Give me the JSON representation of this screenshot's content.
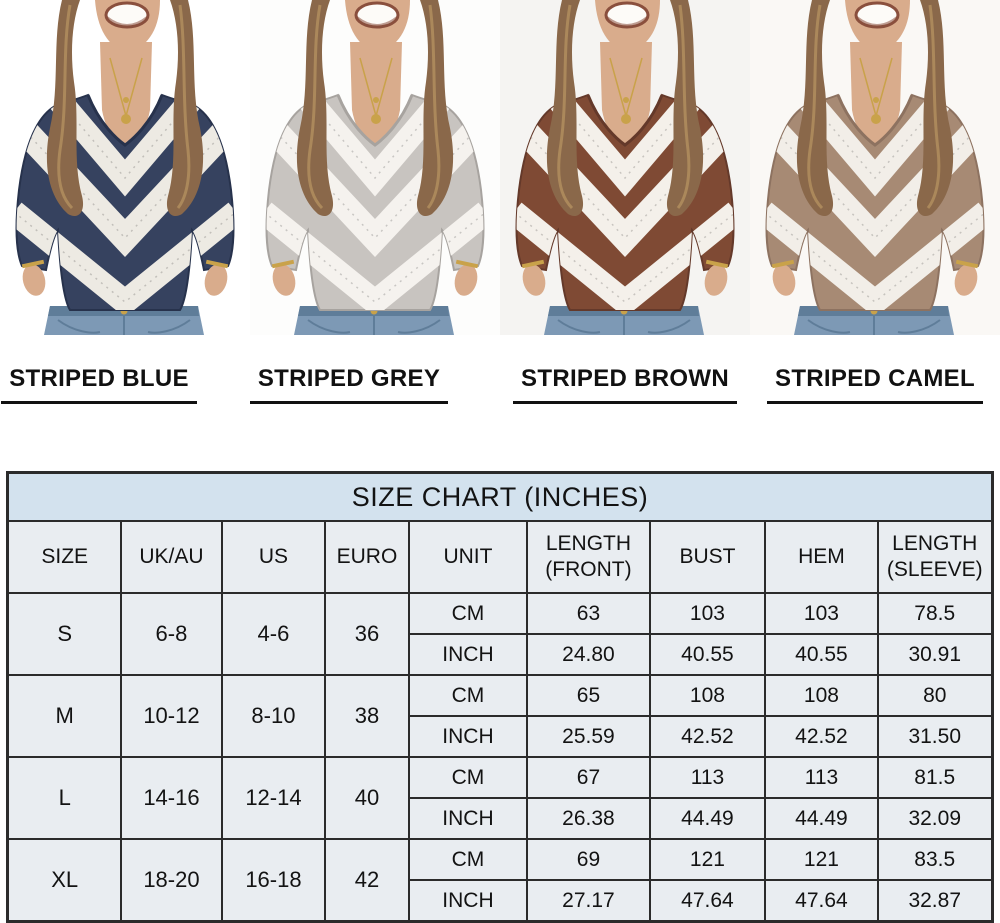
{
  "products": {
    "photos": [
      {
        "id": "blue",
        "label": "STRIPED BLUE",
        "main": "#36425f",
        "shade": "#27324c",
        "stripe": "#edeae3",
        "bg": "#ffffff"
      },
      {
        "id": "grey",
        "label": "STRIPED GREY",
        "main": "#c8c4c0",
        "shade": "#a7a39f",
        "stripe": "#f5f2ee",
        "bg": "#fdfdfc"
      },
      {
        "id": "brown",
        "label": "STRIPED BROWN",
        "main": "#7f4a34",
        "shade": "#64392a",
        "stripe": "#f4f0ea",
        "bg": "#f5f4f2"
      },
      {
        "id": "camel",
        "label": "STRIPED CAMEL",
        "main": "#a78a74",
        "shade": "#8d7260",
        "stripe": "#f2eee8",
        "bg": "#faf8f5"
      }
    ]
  },
  "size_chart": {
    "title": "SIZE CHART (INCHES)",
    "columns": [
      "SIZE",
      "UK/AU",
      "US",
      "EURO",
      "UNIT",
      "LENGTH (FRONT)",
      "BUST",
      "HEM",
      "LENGTH (SLEEVE)"
    ],
    "unit_labels": {
      "cm": "CM",
      "inch": "INCH"
    },
    "rows": [
      {
        "size": "S",
        "uk_au": "6-8",
        "us": "4-6",
        "euro": "36",
        "cm": [
          "63",
          "103",
          "103",
          "78.5"
        ],
        "inch": [
          "24.80",
          "40.55",
          "40.55",
          "30.91"
        ]
      },
      {
        "size": "M",
        "uk_au": "10-12",
        "us": "8-10",
        "euro": "38",
        "cm": [
          "65",
          "108",
          "108",
          "80"
        ],
        "inch": [
          "25.59",
          "42.52",
          "42.52",
          "31.50"
        ]
      },
      {
        "size": "L",
        "uk_au": "14-16",
        "us": "12-14",
        "euro": "40",
        "cm": [
          "67",
          "113",
          "113",
          "81.5"
        ],
        "inch": [
          "26.38",
          "44.49",
          "44.49",
          "32.09"
        ]
      },
      {
        "size": "XL",
        "uk_au": "18-20",
        "us": "16-18",
        "euro": "42",
        "cm": [
          "69",
          "121",
          "121",
          "83.5"
        ],
        "inch": [
          "27.17",
          "47.64",
          "47.64",
          "32.87"
        ]
      }
    ]
  },
  "colors": {
    "page_bg": "#ffffff",
    "table_title_bg": "#d3e2ee",
    "table_cell_bg": "#e9edf1",
    "table_border": "#2b2b2b",
    "label_text": "#111111"
  },
  "illustration": {
    "skin": "#d9ac8c",
    "hair": "#8a684a",
    "hair_highlight": "#b3905f",
    "lip": "#8a4f3d",
    "jeans": "#7d99b5",
    "jeans_dark": "#5f7d99",
    "gold": "#c9a24a"
  }
}
